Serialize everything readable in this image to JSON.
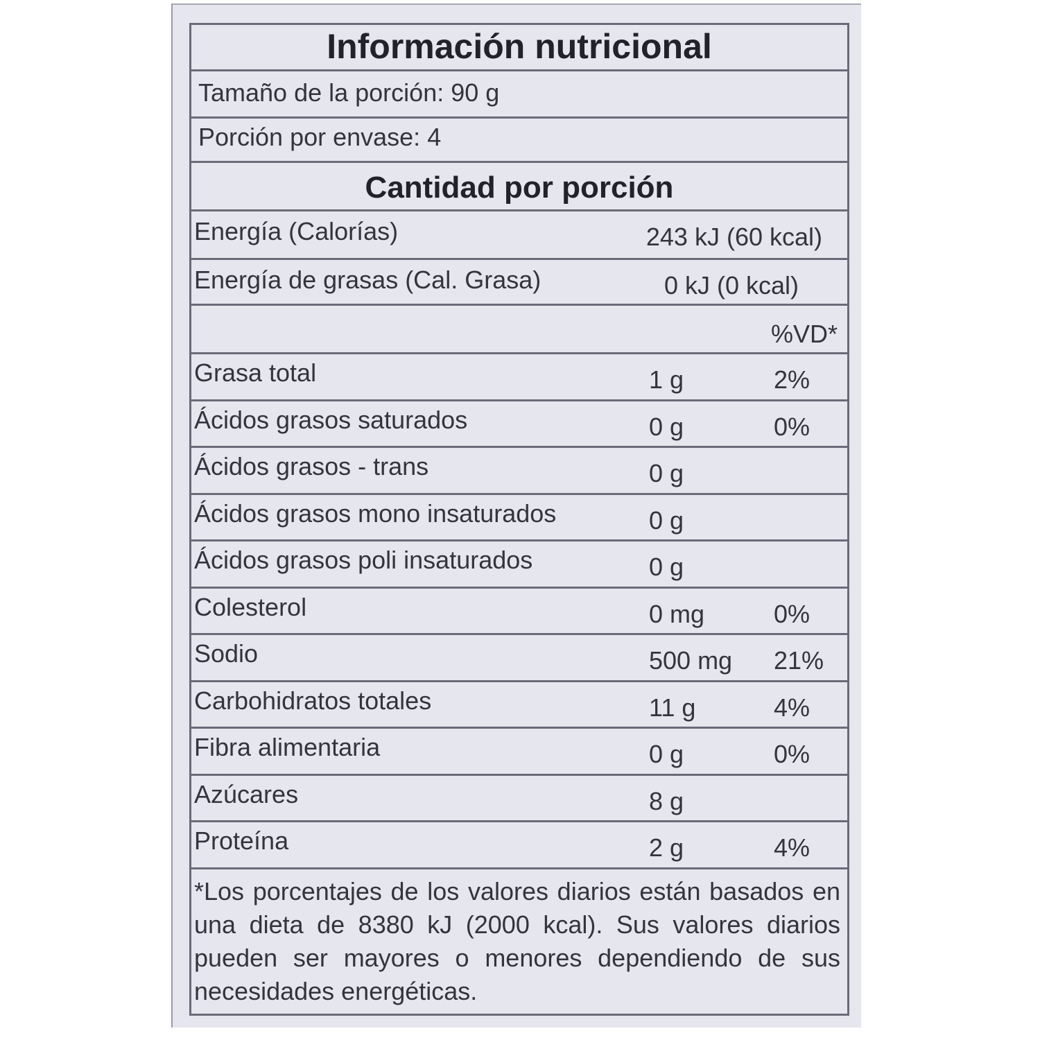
{
  "title": "Información nutricional",
  "serving_size": "Tamaño de la porción: 90 g",
  "servings_per_container": "Porción por envase: 4",
  "amount_per_serving": "Cantidad por porción",
  "energy": {
    "label": "Energía (Calorías)",
    "value": "243 kJ (60 kcal)"
  },
  "energy_fat": {
    "label": "Energía de grasas (Cal. Grasa)",
    "value": "0 kJ (0 kcal)"
  },
  "dv_header": "%VD*",
  "nutrients": [
    {
      "name": "Grasa total",
      "amount": "1 g",
      "dv": "2%"
    },
    {
      "name": "Ácidos grasos saturados",
      "amount": "0 g",
      "dv": "0%"
    },
    {
      "name": "Ácidos grasos - trans",
      "amount": "0 g",
      "dv": ""
    },
    {
      "name": "Ácidos grasos mono insaturados",
      "amount": "0 g",
      "dv": ""
    },
    {
      "name": "Ácidos grasos poli insaturados",
      "amount": "0 g",
      "dv": ""
    },
    {
      "name": "Colesterol",
      "amount": "0 mg",
      "dv": "0%"
    },
    {
      "name": "Sodio",
      "amount": "500 mg",
      "dv": "21%"
    },
    {
      "name": "Carbohidratos totales",
      "amount": "11 g",
      "dv": "4%"
    },
    {
      "name": "Fibra alimentaria",
      "amount": "0 g",
      "dv": "0%"
    },
    {
      "name": "Azúcares",
      "amount": "8 g",
      "dv": ""
    },
    {
      "name": "Proteína",
      "amount": "2 g",
      "dv": "4%"
    }
  ],
  "footnote": "*Los porcentajes de los valores diarios están basados en una dieta de 8380 kJ (2000 kcal). Sus valores diarios pueden ser mayores o menores dependiendo de sus necesidades energéticas."
}
